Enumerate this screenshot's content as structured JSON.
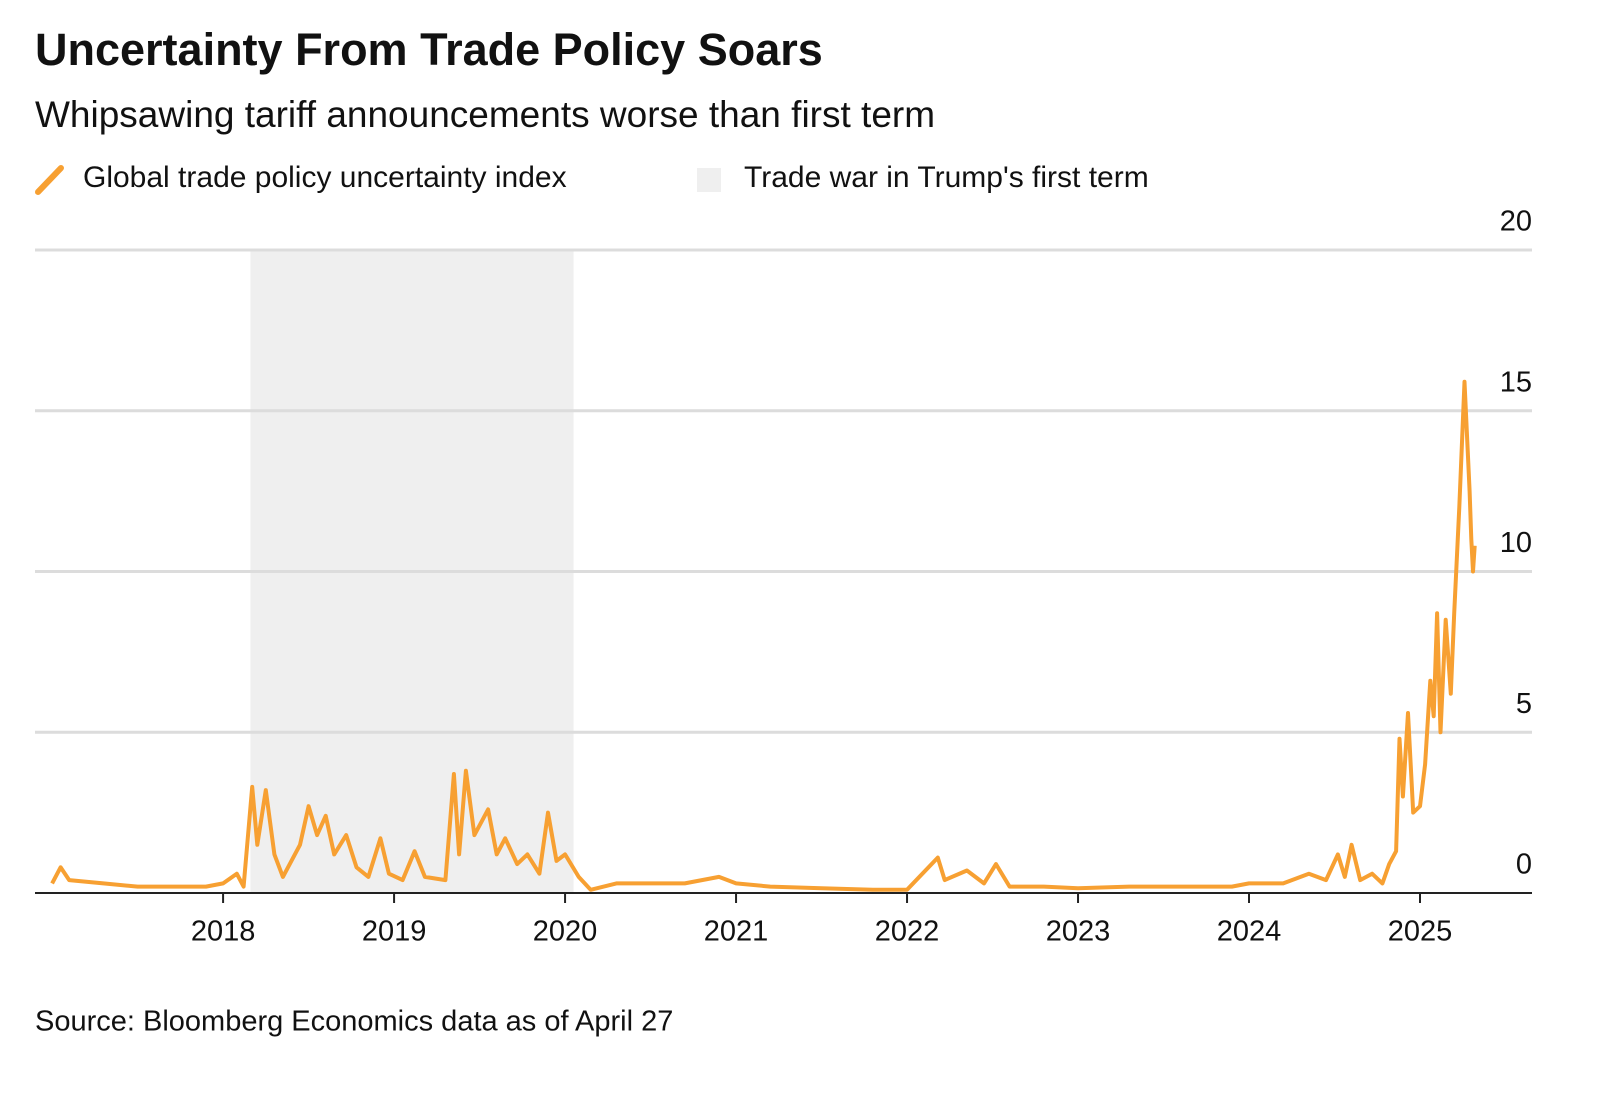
{
  "chart_data": {
    "type": "line",
    "title": "Uncertainty From Trade Policy Soars",
    "subtitle": "Whipsawing tariff announcements worse than first term",
    "source": "Source: Bloomberg Economics data as of April 27",
    "x": [
      2017.0,
      2017.05,
      2017.1,
      2017.3,
      2017.5,
      2017.7,
      2017.9,
      2018.0,
      2018.08,
      2018.12,
      2018.17,
      2018.2,
      2018.25,
      2018.3,
      2018.35,
      2018.45,
      2018.5,
      2018.55,
      2018.6,
      2018.65,
      2018.72,
      2018.78,
      2018.85,
      2018.92,
      2018.97,
      2019.05,
      2019.12,
      2019.18,
      2019.3,
      2019.35,
      2019.38,
      2019.42,
      2019.47,
      2019.55,
      2019.6,
      2019.65,
      2019.72,
      2019.78,
      2019.85,
      2019.9,
      2019.95,
      2020.0,
      2020.08,
      2020.15,
      2020.3,
      2020.5,
      2020.7,
      2020.9,
      2021.0,
      2021.2,
      2021.5,
      2021.8,
      2022.0,
      2022.18,
      2022.22,
      2022.35,
      2022.45,
      2022.52,
      2022.6,
      2022.8,
      2023.0,
      2023.3,
      2023.6,
      2023.9,
      2024.0,
      2024.2,
      2024.35,
      2024.45,
      2024.52,
      2024.56,
      2024.6,
      2024.65,
      2024.72,
      2024.78,
      2024.82,
      2024.86,
      2024.88,
      2024.9,
      2024.93,
      2024.96,
      2025.0,
      2025.03,
      2025.06,
      2025.08,
      2025.1,
      2025.12,
      2025.15,
      2025.18,
      2025.2,
      2025.23,
      2025.26,
      2025.29,
      2025.3,
      2025.31,
      2025.32
    ],
    "series": [
      {
        "name": "Global trade policy uncertainty index",
        "color": "#f7a032",
        "values": [
          0.3,
          0.8,
          0.4,
          0.3,
          0.2,
          0.2,
          0.2,
          0.3,
          0.6,
          0.2,
          3.3,
          1.5,
          3.2,
          1.2,
          0.5,
          1.5,
          2.7,
          1.8,
          2.4,
          1.2,
          1.8,
          0.8,
          0.5,
          1.7,
          0.6,
          0.4,
          1.3,
          0.5,
          0.4,
          3.7,
          1.2,
          3.8,
          1.8,
          2.6,
          1.2,
          1.7,
          0.9,
          1.2,
          0.6,
          2.5,
          1.0,
          1.2,
          0.5,
          0.1,
          0.3,
          0.3,
          0.3,
          0.5,
          0.3,
          0.2,
          0.15,
          0.1,
          0.1,
          1.1,
          0.4,
          0.7,
          0.3,
          0.9,
          0.2,
          0.2,
          0.15,
          0.2,
          0.2,
          0.2,
          0.3,
          0.3,
          0.6,
          0.4,
          1.2,
          0.5,
          1.5,
          0.4,
          0.6,
          0.3,
          0.9,
          1.3,
          4.8,
          3.0,
          5.6,
          2.5,
          2.7,
          4.0,
          6.6,
          5.5,
          8.7,
          5.0,
          8.5,
          6.2,
          8.7,
          12.0,
          15.9,
          12.5,
          11.0,
          10.0,
          10.8
        ]
      }
    ],
    "shaded_region": {
      "name": "Trade war in Trump's first term",
      "x": [
        2018.16,
        2020.05
      ],
      "color": "#efefef"
    },
    "xlim": [
      2016.9,
      2025.655
    ],
    "xticks": [
      2018,
      2019,
      2020,
      2021,
      2022,
      2023,
      2024,
      2025
    ],
    "ylim": [
      0,
      20
    ],
    "yticks": [
      0,
      5,
      10,
      15,
      20
    ],
    "grid": true
  }
}
